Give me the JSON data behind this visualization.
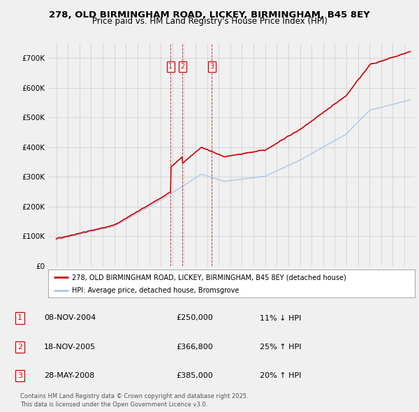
{
  "title": "278, OLD BIRMINGHAM ROAD, LICKEY, BIRMINGHAM, B45 8EY",
  "subtitle": "Price paid vs. HM Land Registry's House Price Index (HPI)",
  "ylim": [
    0,
    750000
  ],
  "yticks": [
    0,
    100000,
    200000,
    300000,
    400000,
    500000,
    600000,
    700000
  ],
  "ytick_labels": [
    "£0",
    "£100K",
    "£200K",
    "£300K",
    "£400K",
    "£500K",
    "£600K",
    "£700K"
  ],
  "hpi_color": "#aac8e8",
  "price_color": "#cc0000",
  "background_color": "#f0f0f0",
  "grid_color": "#cccccc",
  "xlim_start": 1994.3,
  "xlim_end": 2025.9,
  "transactions": [
    {
      "label": "1",
      "date": "08-NOV-2004",
      "price": 250000,
      "x_year": 2004.86
    },
    {
      "label": "2",
      "date": "18-NOV-2005",
      "price": 366800,
      "x_year": 2005.88
    },
    {
      "label": "3",
      "date": "28-MAY-2008",
      "price": 385000,
      "x_year": 2008.41
    }
  ],
  "legend_property_label": "278, OLD BIRMINGHAM ROAD, LICKEY, BIRMINGHAM, B45 8EY (detached house)",
  "legend_hpi_label": "HPI: Average price, detached house, Bromsgrove",
  "footer": "Contains HM Land Registry data © Crown copyright and database right 2025.\nThis data is licensed under the Open Government Licence v3.0.",
  "table_entries": [
    {
      "num": "1",
      "date": "08-NOV-2004",
      "price": "£250,000",
      "rel": "11% ↓ HPI"
    },
    {
      "num": "2",
      "date": "18-NOV-2005",
      "price": "£366,800",
      "rel": "25% ↑ HPI"
    },
    {
      "num": "3",
      "date": "28-MAY-2008",
      "price": "£385,000",
      "rel": "20% ↑ HPI"
    }
  ]
}
